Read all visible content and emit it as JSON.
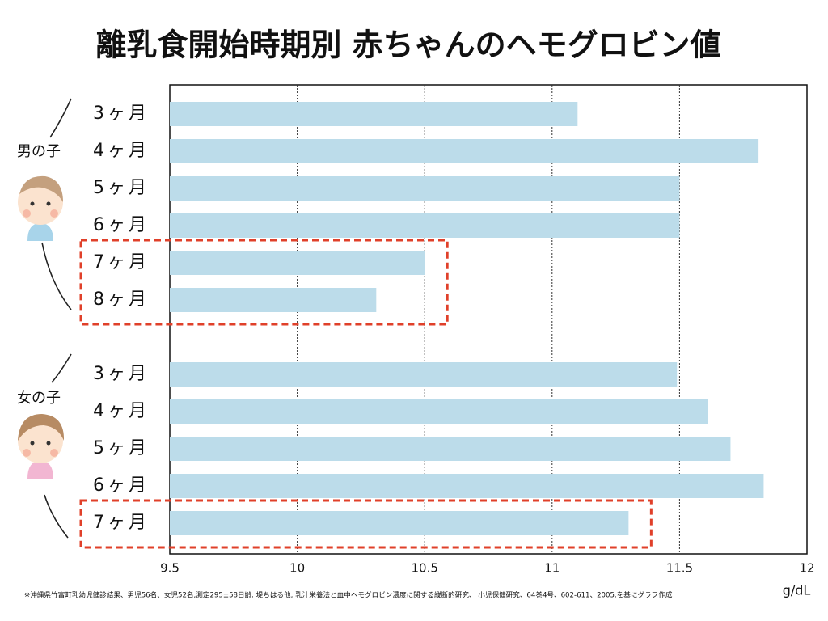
{
  "chart_data": {
    "type": "bar",
    "orientation": "horizontal",
    "title": "離乳食開始時期別 赤ちゃんのヘモグロビン値",
    "x_label": "g/dL",
    "footnote": "※沖縄県竹富町乳幼児健診結果、男児56名、女児52名,測定295±58日齢. 堤ちはる他, 乳汁栄養法と血中ヘモグロビン濃度に関する縦断的研究、 小児保健研究、64巻4号、602-611、2005.を基にグラフ作成",
    "color": "#bcdcea",
    "highlight_color": "#e0402a",
    "xlim": [
      9.5,
      12
    ],
    "xticks": [
      9.5,
      10,
      10.5,
      11,
      11.5,
      12
    ],
    "grid": true,
    "groups": [
      {
        "name": "男の子",
        "categories": [
          "3ヶ月",
          "4ヶ月",
          "5ヶ月",
          "6ヶ月",
          "7ヶ月",
          "8ヶ月"
        ],
        "values": [
          11.1,
          11.81,
          11.5,
          11.5,
          10.5,
          10.31
        ],
        "highlighted": [
          4,
          5
        ]
      },
      {
        "name": "女の子",
        "categories": [
          "3ヶ月",
          "4ヶ月",
          "5ヶ月",
          "6ヶ月",
          "7ヶ月"
        ],
        "values": [
          11.49,
          11.61,
          11.7,
          11.83,
          11.3
        ],
        "highlighted": [
          4
        ]
      }
    ]
  }
}
